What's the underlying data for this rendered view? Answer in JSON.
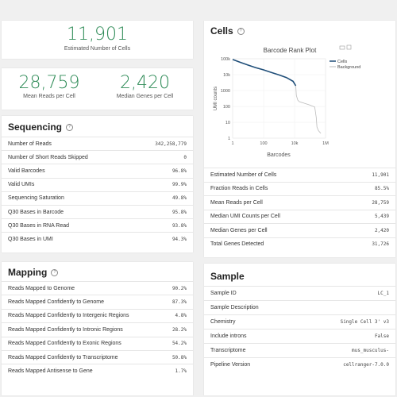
{
  "cells_estimated": {
    "value": "11,901",
    "label": "Estimated Number of Cells"
  },
  "mean_reads": {
    "value": "28,759",
    "label": "Mean Reads per Cell"
  },
  "median_genes": {
    "value": "2,420",
    "label": "Median Genes per Cell"
  },
  "sequencing": {
    "title": "Sequencing",
    "rows": [
      {
        "label": "Number of Reads",
        "value": "342,258,779"
      },
      {
        "label": "Number of Short Reads Skipped",
        "value": "0"
      },
      {
        "label": "Valid Barcodes",
        "value": "96.8%"
      },
      {
        "label": "Valid UMIs",
        "value": "99.9%"
      },
      {
        "label": "Sequencing Saturation",
        "value": "49.8%"
      },
      {
        "label": "Q30 Bases in Barcode",
        "value": "95.8%"
      },
      {
        "label": "Q30 Bases in RNA Read",
        "value": "93.8%"
      },
      {
        "label": "Q30 Bases in UMI",
        "value": "94.3%"
      }
    ]
  },
  "mapping": {
    "title": "Mapping",
    "rows": [
      {
        "label": "Reads Mapped to Genome",
        "value": "90.2%"
      },
      {
        "label": "Reads Mapped Confidently to Genome",
        "value": "87.3%"
      },
      {
        "label": "Reads Mapped Confidently to Intergenic Regions",
        "value": "4.8%"
      },
      {
        "label": "Reads Mapped Confidently to Intronic Regions",
        "value": "28.2%"
      },
      {
        "label": "Reads Mapped Confidently to Exonic Regions",
        "value": "54.2%"
      },
      {
        "label": "Reads Mapped Confidently to Transcriptome",
        "value": "50.8%"
      },
      {
        "label": "Reads Mapped Antisense to Gene",
        "value": "1.7%"
      }
    ]
  },
  "cells": {
    "title": "Cells",
    "rows": [
      {
        "label": "Estimated Number of Cells",
        "value": "11,901"
      },
      {
        "label": "Fraction Reads in Cells",
        "value": "85.5%"
      },
      {
        "label": "Mean Reads per Cell",
        "value": "28,759"
      },
      {
        "label": "Median UMI Counts per Cell",
        "value": "5,439"
      },
      {
        "label": "Median Genes per Cell",
        "value": "2,420"
      },
      {
        "label": "Total Genes Detected",
        "value": "31,726"
      }
    ]
  },
  "sample": {
    "title": "Sample",
    "rows": [
      {
        "label": "Sample ID",
        "value": "LC_1"
      },
      {
        "label": "Sample Description",
        "value": ""
      },
      {
        "label": "Chemistry",
        "value": "Single Cell 3' v3"
      },
      {
        "label": "Include introns",
        "value": "False"
      },
      {
        "label": "Transcriptome",
        "value": "mus_musculus-"
      },
      {
        "label": "Pipeline Version",
        "value": "cellranger-7.0.0"
      }
    ]
  },
  "chart_data": {
    "type": "line",
    "title": "Barcode Rank Plot",
    "xlabel": "Barcodes",
    "ylabel": "UMI counts",
    "x_scale": "log",
    "y_scale": "log",
    "xlim": [
      1,
      1000000
    ],
    "ylim": [
      1,
      100000
    ],
    "x_ticks": [
      "1",
      "100",
      "10k",
      "1M"
    ],
    "y_ticks": [
      "100k",
      "10k",
      "1000",
      "100",
      "10",
      "1"
    ],
    "legend_position": "top-right",
    "series": [
      {
        "name": "Cells",
        "color": "#1f4e79",
        "x": [
          1,
          3,
          10,
          30,
          100,
          300,
          1000,
          3000,
          8000,
          11901
        ],
        "y": [
          90000,
          60000,
          40000,
          28000,
          20000,
          14000,
          9500,
          6500,
          3800,
          2000
        ]
      },
      {
        "name": "Background",
        "color": "#bbbbbb",
        "x": [
          11901,
          13000,
          16000,
          20000,
          40000,
          100000,
          200000,
          250000,
          280000,
          350000,
          500000
        ],
        "y": [
          2000,
          500,
          250,
          200,
          160,
          120,
          90,
          20,
          5,
          3,
          2
        ]
      }
    ]
  }
}
